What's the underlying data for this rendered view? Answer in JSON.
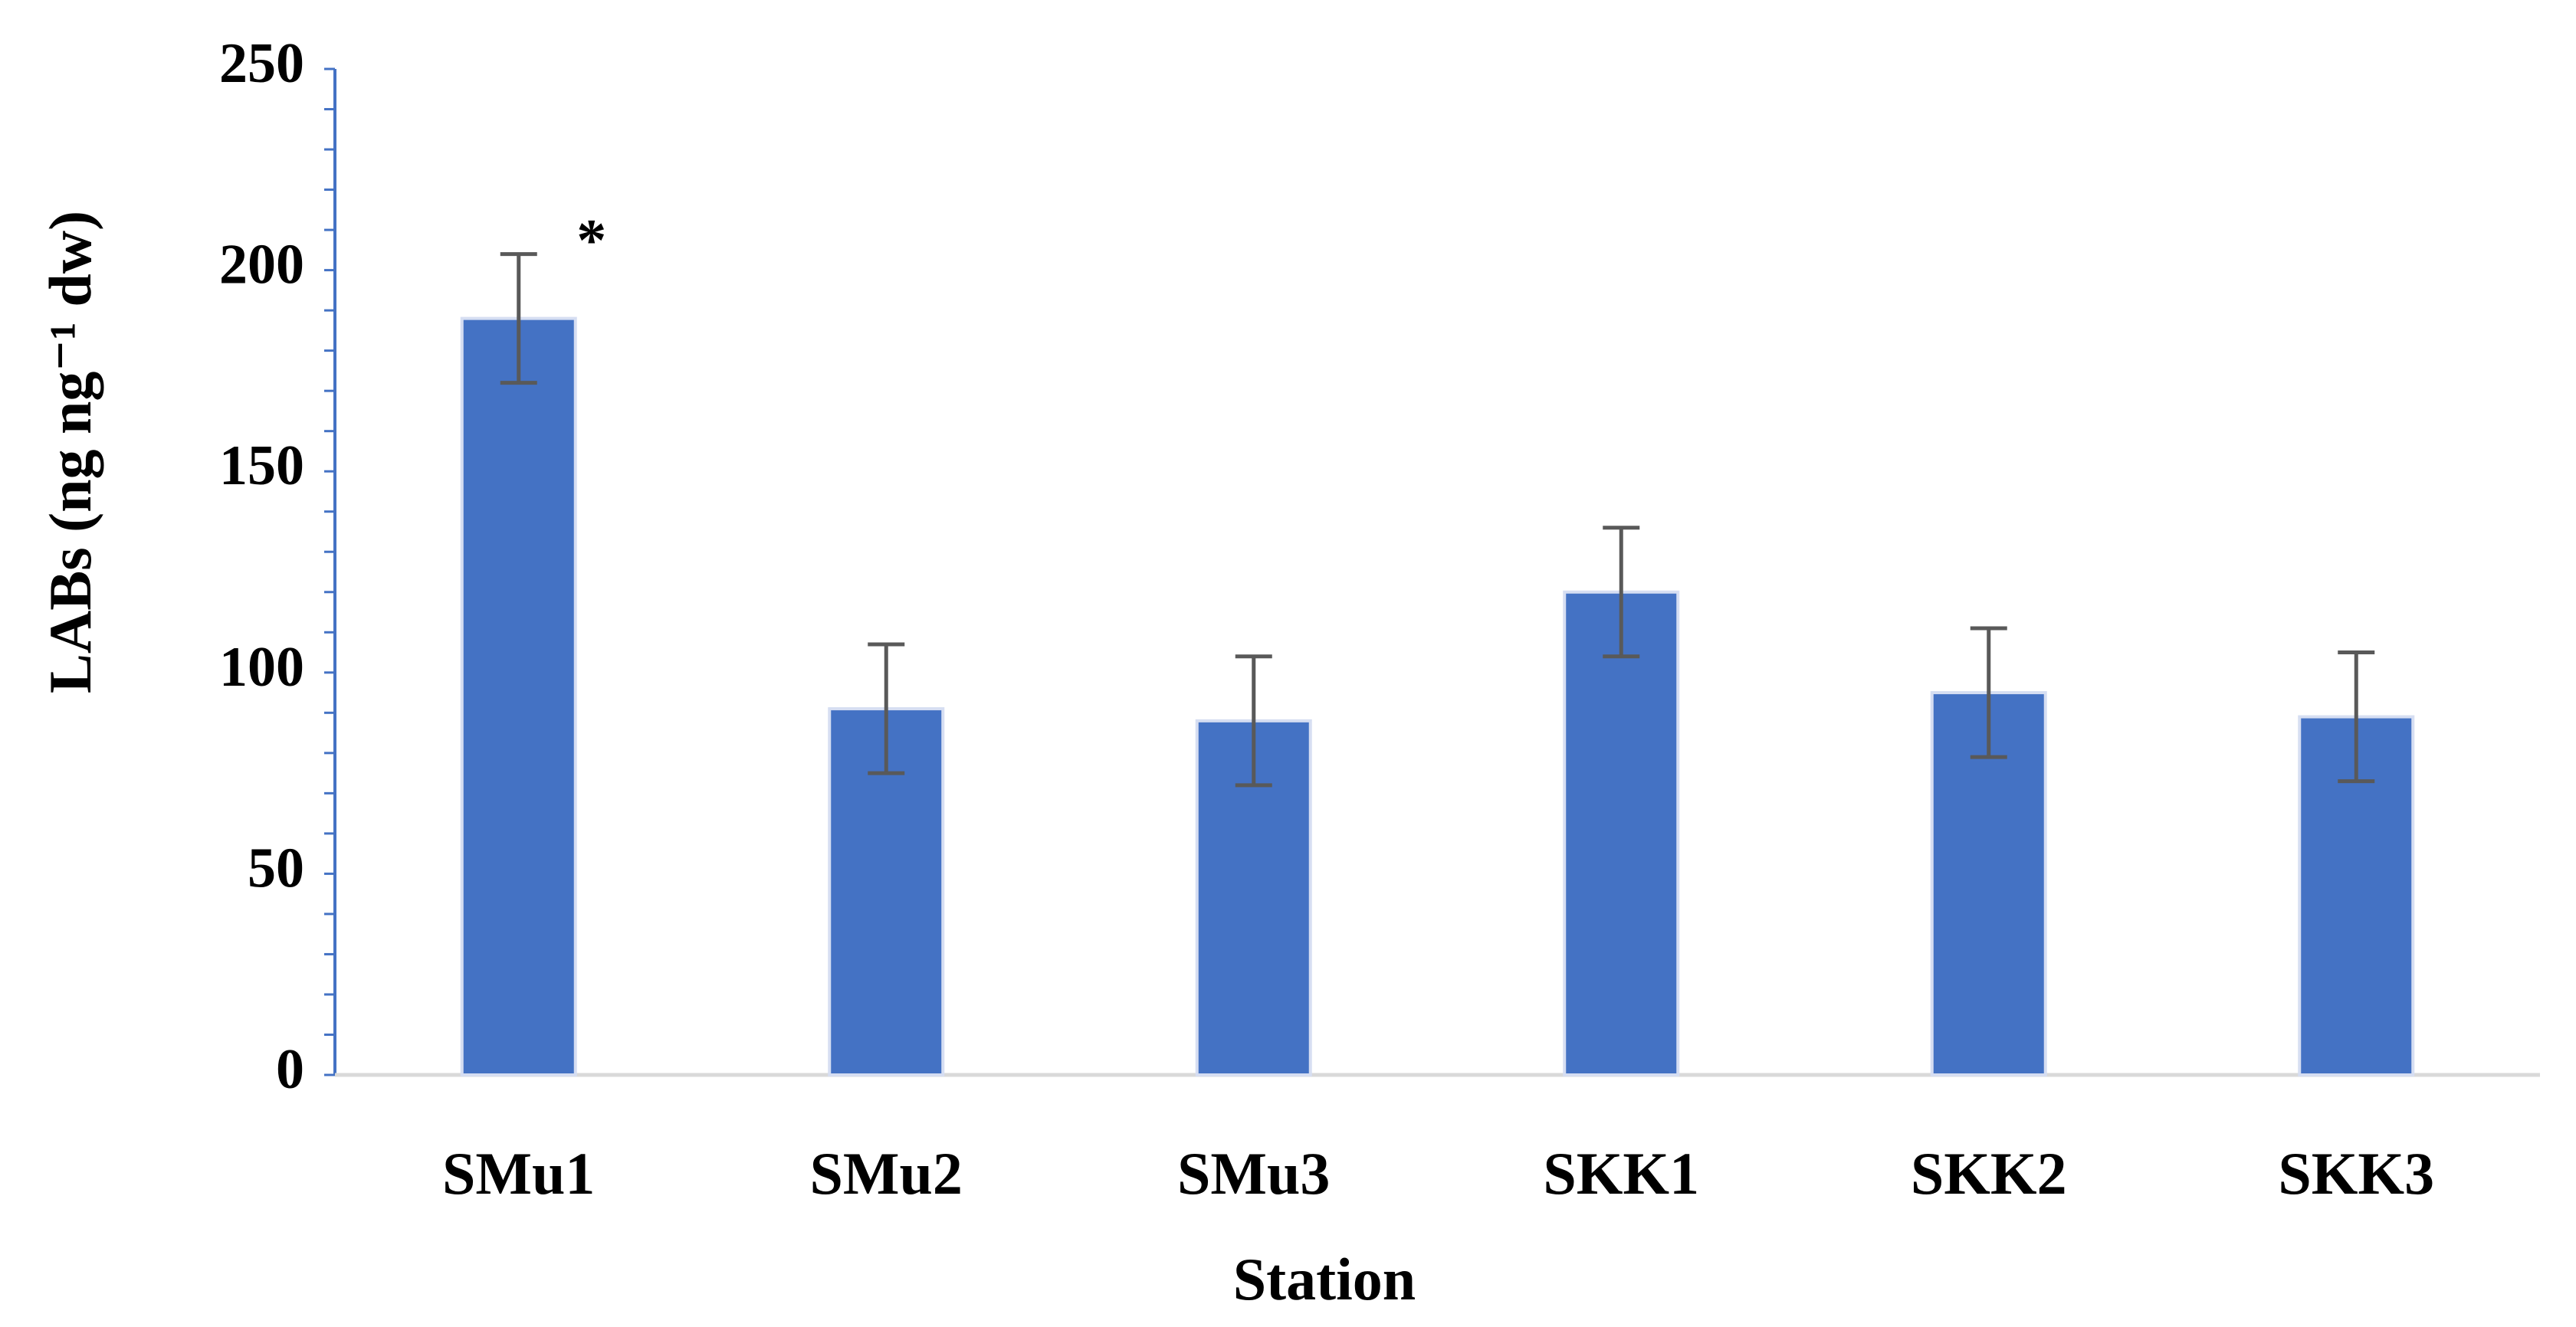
{
  "chart_data": {
    "type": "bar",
    "x_label": "Station",
    "y_label": "LABs (ng ng⁻¹ dw)",
    "categories": [
      "SMu1",
      "SMu2",
      "SMu3",
      "SKK1",
      "SKK2",
      "SKK3"
    ],
    "values": [
      188,
      91,
      88,
      120,
      95,
      89
    ],
    "errors": [
      16,
      16,
      16,
      16,
      16,
      16
    ],
    "color": "#4472c4",
    "ylim": [
      0,
      250
    ],
    "yticks": [
      0,
      50,
      100,
      150,
      200,
      250
    ],
    "yminorticks": [
      10,
      20,
      30,
      40,
      60,
      70,
      80,
      90,
      110,
      120,
      130,
      140,
      160,
      170,
      180,
      190,
      210,
      220,
      230,
      240
    ],
    "annotations": [
      {
        "text": "*",
        "category": 0
      }
    ]
  }
}
